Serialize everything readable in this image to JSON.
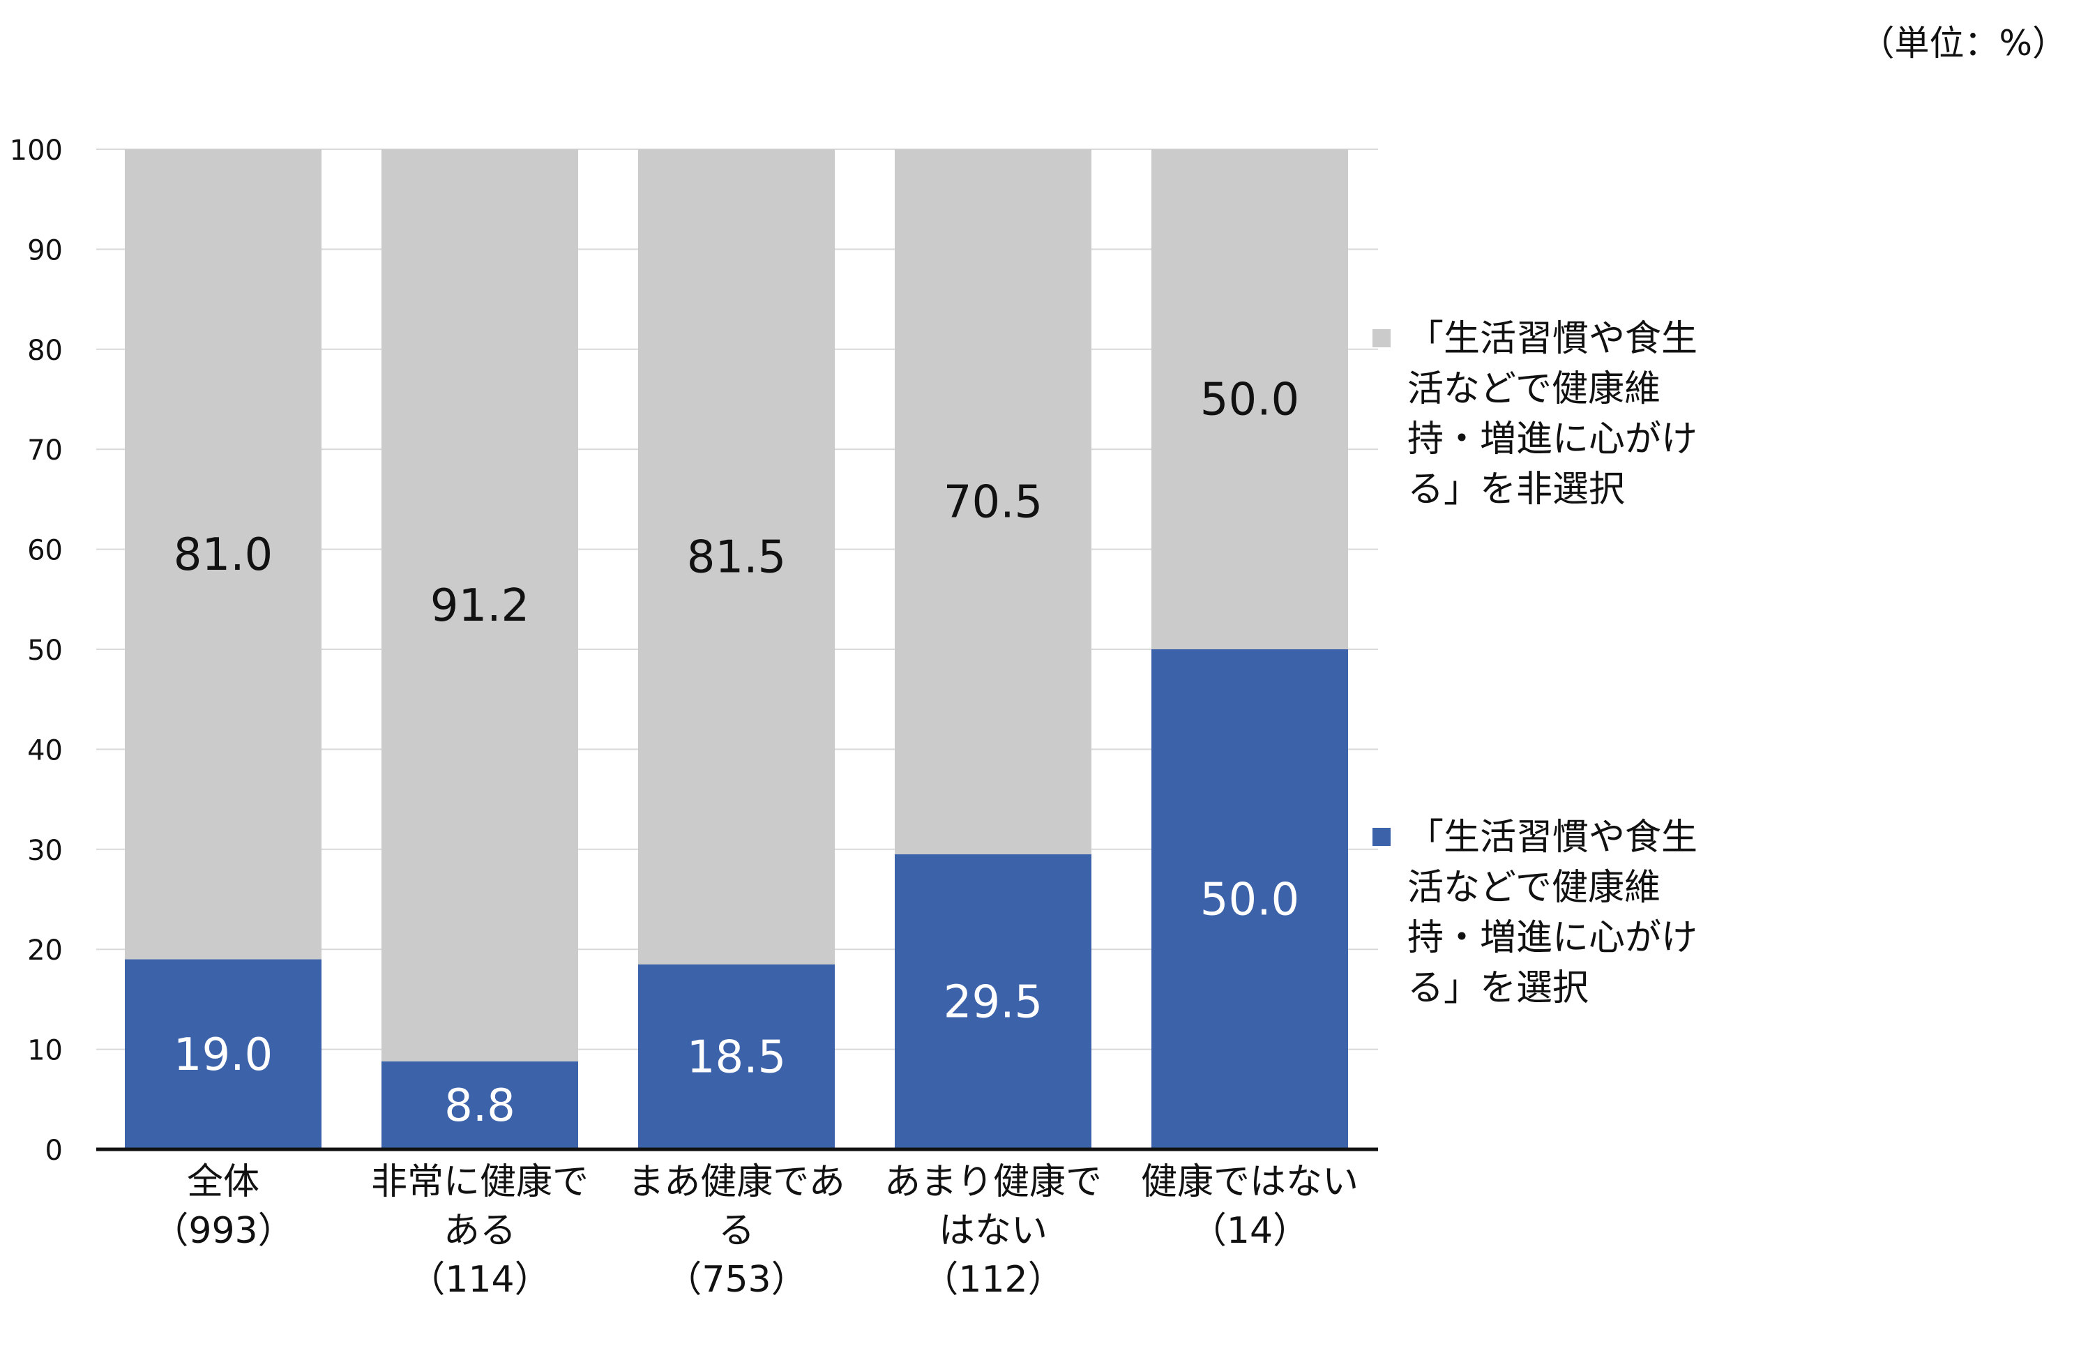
{
  "chart_data": {
    "type": "bar",
    "stacked": true,
    "unit_label": "（単位：%）",
    "categories": [
      {
        "line1": "全体",
        "line2": "",
        "n": "（993）"
      },
      {
        "line1": "非常に健康で",
        "line2": "ある",
        "n": "（114）"
      },
      {
        "line1": "まあ健康であ",
        "line2": "る",
        "n": "（753）"
      },
      {
        "line1": "あまり健康で",
        "line2": "はない",
        "n": "（112）"
      },
      {
        "line1": "健康ではない",
        "line2": "",
        "n": "（14）"
      }
    ],
    "series": [
      {
        "name": "「生活習慣や食生活などで健康維持・増進に心がける」を選択",
        "color": "#3c62aa",
        "label_color": "#ffffff",
        "values": [
          19.0,
          8.8,
          18.5,
          29.5,
          50.0
        ],
        "labels": [
          "19.0",
          "8.8",
          "18.5",
          "29.5",
          "50.0"
        ]
      },
      {
        "name": "「生活習慣や食生活などで健康維持・増進に心がける」を非選択",
        "color": "#cbcbcb",
        "label_color": "#111111",
        "values": [
          81.0,
          91.2,
          81.5,
          70.5,
          50.0
        ],
        "labels": [
          "81.0",
          "91.2",
          "81.5",
          "70.5",
          "50.0"
        ]
      }
    ],
    "ylim": [
      0,
      100
    ],
    "yticks": [
      0,
      10,
      20,
      30,
      40,
      50,
      60,
      70,
      80,
      90,
      100
    ],
    "grid": true,
    "legend_position": "right"
  }
}
